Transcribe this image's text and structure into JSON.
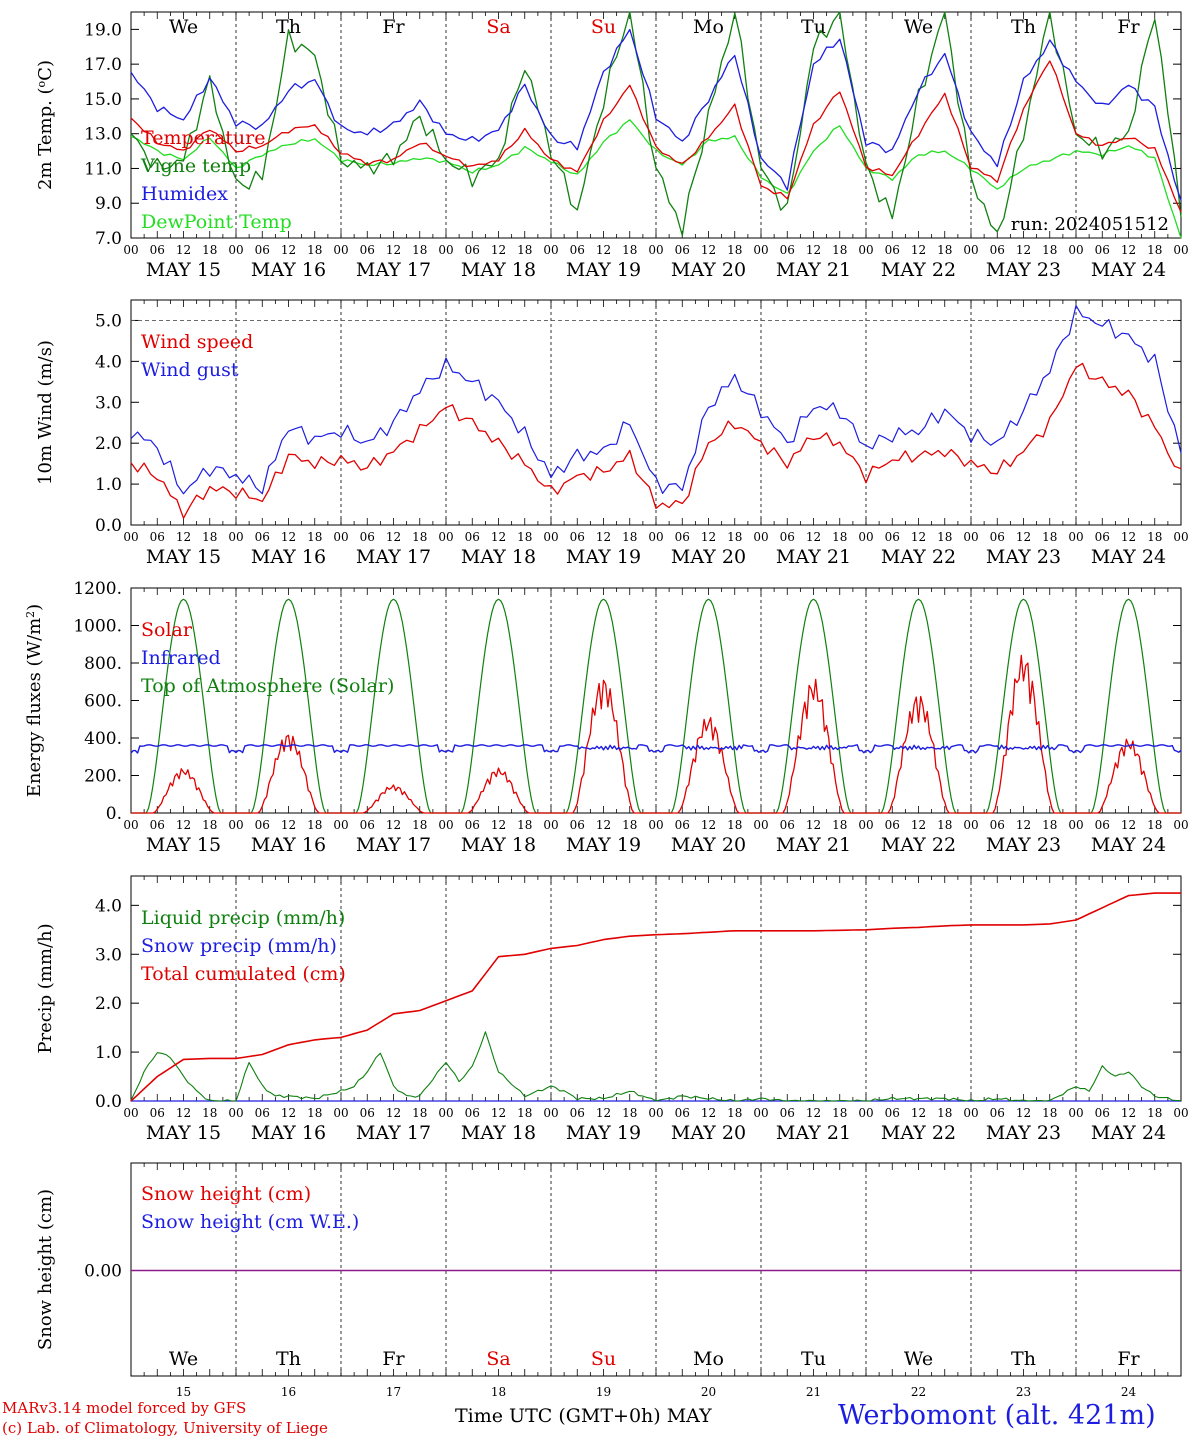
{
  "footer": {
    "credit_line1": "MARv3.14 model forced by GFS",
    "credit_line2": "(c) Lab. of Climatology, University of Liege",
    "x_axis_title": "Time UTC (GMT+0h) MAY",
    "station": "Werbomont (alt. 421m)"
  },
  "colors": {
    "red": "#e00000",
    "blue": "#1d1de0",
    "green": "#108010",
    "lightgreen": "#22dd22",
    "purple": "#8b1a8b"
  },
  "days": {
    "weekday_labels": [
      "We",
      "Th",
      "Fr",
      "Sa",
      "Su",
      "Mo",
      "Tu",
      "We",
      "Th",
      "Fr"
    ],
    "weekend_indices": [
      3,
      4
    ],
    "date_labels": [
      "MAY 15",
      "MAY 16",
      "MAY 17",
      "MAY 18",
      "MAY 19",
      "MAY 20",
      "MAY 21",
      "MAY 22",
      "MAY 23",
      "MAY 24"
    ],
    "day_numbers": [
      "15",
      "16",
      "17",
      "18",
      "19",
      "20",
      "21",
      "22",
      "23",
      "24"
    ],
    "hour_ticks": [
      "00",
      "06",
      "12",
      "18"
    ],
    "final_tick": "00"
  },
  "chart_data": [
    {
      "type": "line",
      "ylabel": "2m Temp. (oC)",
      "ylim": [
        7.0,
        20.0
      ],
      "yticks": [
        "7.0",
        "9.0",
        "11.0",
        "13.0",
        "15.0",
        "17.0",
        "19.0"
      ],
      "run_label": "run: 2024051512",
      "series": [
        {
          "name": "Temperature",
          "color": "red",
          "x": [
            0,
            6,
            12,
            18,
            24,
            30,
            36,
            42,
            48,
            54,
            60,
            66,
            72,
            78,
            84,
            90,
            96,
            102,
            108,
            114,
            120,
            126,
            132,
            138,
            144,
            150,
            156,
            162,
            168,
            174,
            180,
            186,
            192,
            198,
            204,
            210,
            216,
            222,
            228,
            234,
            240
          ],
          "y": [
            13.9,
            12.5,
            12.0,
            13.3,
            12.0,
            12.3,
            13.2,
            13.5,
            11.9,
            11.3,
            11.5,
            12.5,
            11.7,
            11.1,
            11.5,
            13.2,
            11.5,
            10.8,
            13.7,
            15.8,
            12.2,
            11.2,
            12.8,
            14.6,
            10.0,
            9.3,
            13.5,
            15.5,
            11.1,
            10.6,
            13.0,
            15.3,
            11.1,
            10.3,
            14.4,
            17.3,
            13.0,
            12.3,
            12.8,
            12.1,
            8.5
          ]
        },
        {
          "name": "Vigne temp",
          "color": "green",
          "x": [
            0,
            6,
            12,
            18,
            24,
            30,
            36,
            42,
            48,
            54,
            60,
            66,
            72,
            78,
            84,
            90,
            96,
            102,
            108,
            114,
            120,
            126,
            132,
            138,
            144,
            150,
            156,
            162,
            168,
            174,
            180,
            186,
            192,
            198,
            204,
            210,
            216,
            222,
            228,
            234,
            240
          ],
          "y": [
            13.0,
            11.0,
            11.5,
            16.0,
            10.0,
            10.5,
            18.5,
            17.5,
            11.5,
            11.0,
            11.6,
            14.0,
            11.5,
            10.5,
            11.5,
            17.0,
            12.0,
            8.5,
            15.0,
            20.0,
            11.0,
            7.5,
            14.0,
            20.0,
            11.0,
            8.5,
            18.0,
            20.0,
            11.0,
            8.2,
            15.0,
            20.0,
            10.5,
            7.0,
            13.0,
            20.0,
            13.0,
            12.0,
            13.0,
            20.0,
            8.5
          ]
        },
        {
          "name": "Humidex",
          "color": "blue",
          "x": [
            0,
            6,
            12,
            18,
            24,
            30,
            36,
            42,
            48,
            54,
            60,
            66,
            72,
            78,
            84,
            90,
            96,
            102,
            108,
            114,
            120,
            126,
            132,
            138,
            144,
            150,
            156,
            162,
            168,
            174,
            180,
            186,
            192,
            198,
            204,
            210,
            216,
            222,
            228,
            234,
            240
          ],
          "y": [
            16.5,
            14.5,
            13.8,
            16.2,
            13.6,
            13.4,
            15.5,
            16.1,
            13.3,
            13.0,
            13.5,
            14.8,
            13.0,
            12.6,
            13.2,
            15.8,
            12.8,
            12.2,
            16.5,
            19.0,
            14.0,
            12.5,
            15.0,
            17.6,
            11.6,
            10.0,
            17.0,
            18.5,
            12.5,
            12.0,
            15.5,
            17.6,
            13.0,
            11.2,
            16.0,
            18.3,
            16.0,
            14.5,
            15.8,
            14.5,
            9.0
          ]
        },
        {
          "name": "DewPoint Temp",
          "color": "lightgreen",
          "x": [
            0,
            6,
            12,
            18,
            24,
            30,
            36,
            42,
            48,
            54,
            60,
            66,
            72,
            78,
            84,
            90,
            96,
            102,
            108,
            114,
            120,
            126,
            132,
            138,
            144,
            150,
            156,
            162,
            168,
            174,
            180,
            186,
            192,
            198,
            204,
            210,
            216,
            222,
            228,
            234,
            240
          ],
          "y": [
            12.9,
            12.0,
            11.5,
            12.8,
            11.0,
            11.8,
            12.4,
            12.7,
            11.5,
            11.2,
            11.3,
            11.6,
            11.4,
            10.8,
            11.2,
            12.2,
            11.4,
            10.6,
            12.5,
            13.8,
            12.0,
            11.2,
            12.6,
            12.8,
            10.5,
            9.5,
            12.0,
            13.5,
            11.0,
            10.4,
            11.8,
            12.0,
            11.0,
            9.8,
            11.0,
            11.5,
            12.0,
            11.8,
            12.3,
            11.6,
            7.0
          ]
        }
      ],
      "legend": [
        "Temperature",
        "Vigne temp",
        "Humidex",
        "DewPoint Temp"
      ],
      "legend_position": "top-left"
    },
    {
      "type": "line",
      "ylabel": "10m Wind (m/s)",
      "ylim": [
        0.0,
        5.5
      ],
      "yticks": [
        "0.0",
        "1.0",
        "2.0",
        "3.0",
        "4.0",
        "5.0"
      ],
      "reference_line": 5.0,
      "series": [
        {
          "name": "Wind speed",
          "color": "red",
          "x": [
            0,
            6,
            12,
            18,
            24,
            30,
            36,
            42,
            48,
            54,
            60,
            66,
            72,
            78,
            84,
            90,
            96,
            102,
            108,
            114,
            120,
            126,
            132,
            138,
            144,
            150,
            156,
            162,
            168,
            174,
            180,
            186,
            192,
            198,
            204,
            210,
            216,
            222,
            228,
            234,
            240
          ],
          "y": [
            1.5,
            1.2,
            0.3,
            0.9,
            0.8,
            0.6,
            1.7,
            1.5,
            1.6,
            1.4,
            1.8,
            2.3,
            2.9,
            2.5,
            2.0,
            1.5,
            0.8,
            1.2,
            1.3,
            1.7,
            0.5,
            0.5,
            2.0,
            2.5,
            2.0,
            1.5,
            2.2,
            2.0,
            1.2,
            1.6,
            1.7,
            1.8,
            1.5,
            1.3,
            1.8,
            2.5,
            3.9,
            3.5,
            3.2,
            2.4,
            1.2
          ]
        },
        {
          "name": "Wind gust",
          "color": "blue",
          "x": [
            0,
            6,
            12,
            18,
            24,
            30,
            36,
            42,
            48,
            54,
            60,
            66,
            72,
            78,
            84,
            90,
            96,
            102,
            108,
            114,
            120,
            126,
            132,
            138,
            144,
            150,
            156,
            162,
            168,
            174,
            180,
            186,
            192,
            198,
            204,
            210,
            216,
            222,
            228,
            234,
            240
          ],
          "y": [
            2.3,
            1.9,
            0.8,
            1.4,
            1.2,
            0.9,
            2.4,
            2.1,
            2.3,
            2.0,
            2.5,
            3.3,
            3.9,
            3.5,
            3.0,
            2.2,
            1.2,
            1.7,
            1.8,
            2.5,
            1.0,
            0.9,
            2.9,
            3.6,
            2.8,
            2.0,
            2.9,
            2.8,
            1.9,
            2.2,
            2.3,
            2.8,
            2.2,
            2.0,
            2.8,
            3.8,
            5.2,
            4.9,
            4.6,
            4.0,
            1.8
          ]
        }
      ],
      "legend": [
        "Wind speed",
        "Wind gust"
      ],
      "legend_position": "top-left"
    },
    {
      "type": "line",
      "ylabel_pre": "Energy fluxes (W/m",
      "ylabel_sup": "2",
      "ylabel_post": ")",
      "ylim": [
        0,
        1200
      ],
      "yticks": [
        "0.",
        "200.",
        "400.",
        "600.",
        "800.",
        "1000.",
        "1200."
      ],
      "series": [
        {
          "name": "Solar",
          "color": "red",
          "daily_peak": [
            240,
            430,
            150,
            240,
            730,
            520,
            720,
            640,
            850,
            400
          ]
        },
        {
          "name": "Infrared",
          "color": "blue",
          "baseline": 360,
          "night_dip": 320
        },
        {
          "name": "Top of Atmosphere (Solar)",
          "color": "green",
          "daily_peak": 1140,
          "sunrise_hour": 3.5,
          "sunset_hour": 20.5
        }
      ],
      "legend": [
        "Solar",
        "Infrared",
        "Top of Atmosphere (Solar)"
      ],
      "legend_position": "top-left"
    },
    {
      "type": "line",
      "ylabel": "Precip (mm/h)",
      "ylim": [
        0.0,
        4.6
      ],
      "yticks": [
        "0.0",
        "1.0",
        "2.0",
        "3.0",
        "4.0"
      ],
      "series": [
        {
          "name": "Liquid precip (mm/h)",
          "color": "green",
          "x": [
            0,
            3,
            6,
            9,
            12,
            15,
            18,
            24,
            27,
            30,
            33,
            36,
            42,
            48,
            51,
            54,
            57,
            60,
            63,
            66,
            72,
            75,
            78,
            81,
            84,
            90,
            96,
            99,
            102,
            108,
            114,
            120,
            126,
            132,
            138,
            144,
            150,
            156,
            162,
            168,
            174,
            180,
            186,
            192,
            198,
            204,
            210,
            216,
            219,
            222,
            225,
            228,
            231,
            234,
            240
          ],
          "y": [
            0.0,
            0.6,
            1.0,
            0.9,
            0.5,
            0.2,
            0.0,
            0.0,
            0.8,
            0.3,
            0.1,
            0.1,
            0.05,
            0.2,
            0.3,
            0.6,
            1.0,
            0.3,
            0.1,
            0.1,
            0.8,
            0.4,
            0.7,
            1.4,
            0.6,
            0.1,
            0.3,
            0.2,
            0.05,
            0.05,
            0.2,
            0.0,
            0.1,
            0.05,
            0.0,
            0.05,
            0.0,
            0.0,
            0.0,
            0.0,
            0.05,
            0.05,
            0.05,
            0.0,
            0.05,
            0.0,
            0.0,
            0.3,
            0.2,
            0.7,
            0.5,
            0.6,
            0.3,
            0.1,
            0.0
          ]
        },
        {
          "name": "Snow precip (mm/h)",
          "color": "blue",
          "x": [
            0,
            240
          ],
          "y": [
            0.0,
            0.0
          ]
        },
        {
          "name": "Total cumulated (cm)",
          "color": "red",
          "x": [
            0,
            6,
            12,
            18,
            24,
            30,
            36,
            42,
            48,
            54,
            60,
            66,
            72,
            78,
            84,
            90,
            96,
            102,
            108,
            114,
            120,
            126,
            132,
            138,
            144,
            150,
            156,
            162,
            168,
            174,
            180,
            186,
            192,
            198,
            204,
            210,
            216,
            222,
            228,
            234,
            240
          ],
          "y": [
            0.0,
            0.5,
            0.85,
            0.87,
            0.87,
            0.95,
            1.15,
            1.25,
            1.3,
            1.45,
            1.78,
            1.85,
            2.05,
            2.25,
            2.95,
            3.0,
            3.12,
            3.18,
            3.3,
            3.37,
            3.4,
            3.42,
            3.45,
            3.48,
            3.48,
            3.48,
            3.48,
            3.49,
            3.5,
            3.53,
            3.55,
            3.58,
            3.6,
            3.6,
            3.6,
            3.62,
            3.7,
            3.95,
            4.2,
            4.25,
            4.25
          ]
        }
      ],
      "legend": [
        "Liquid precip (mm/h)",
        "Snow precip (mm/h)",
        "Total cumulated (cm)"
      ],
      "legend_position": "top-left"
    },
    {
      "type": "line",
      "ylabel": "Snow height (cm)",
      "ytick_label": "0.00",
      "series": [
        {
          "name": "Snow height (cm)",
          "color": "red",
          "x": [
            0,
            240
          ],
          "y": [
            0.0,
            0.0
          ]
        },
        {
          "name": "Snow height (cm W.E.)",
          "color": "blue",
          "x": [
            0,
            240
          ],
          "y": [
            0.0,
            0.0
          ]
        }
      ],
      "legend": [
        "Snow height (cm)",
        "Snow height (cm W.E.)"
      ],
      "legend_position": "top-left"
    }
  ]
}
